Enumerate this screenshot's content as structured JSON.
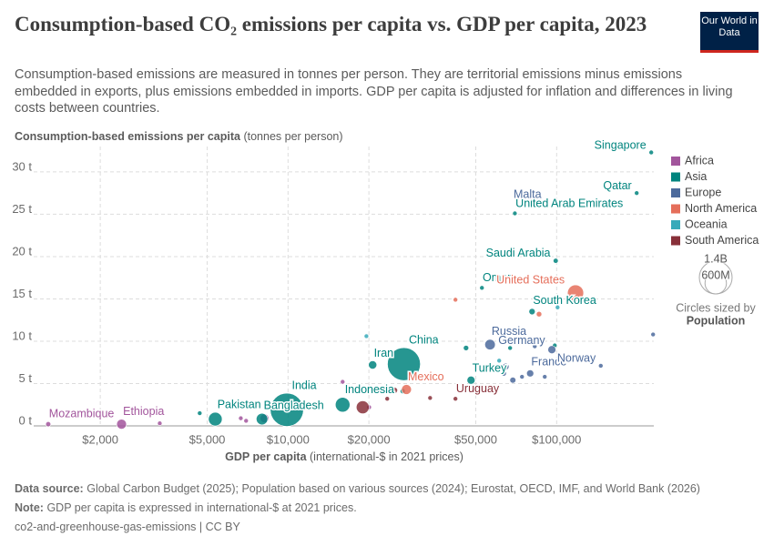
{
  "header": {
    "title": "Consumption-based CO₂ emissions per capita vs. GDP per capita, 2023",
    "subtitle": "Consumption-based emissions are measured in tonnes per person. They are territorial emissions minus emissions embedded in exports, plus emissions embedded in imports. GDP per capita is adjusted for inflation and differences in living costs between countries.",
    "logo": "Our World in Data"
  },
  "chart_data": {
    "type": "scatter",
    "x_scale": "log",
    "grid": true,
    "y_axis": {
      "title": "Consumption-based emissions per capita",
      "unit": "(tonnes per person)"
    },
    "x_axis": {
      "title": "GDP per capita",
      "unit": "(international-$ in 2021 prices)"
    },
    "xlim": [
      1130,
      230000
    ],
    "xticks": [
      {
        "value": 2000,
        "label": "$2,000"
      },
      {
        "value": 5000,
        "label": "$5,000"
      },
      {
        "value": 10000,
        "label": "$10,000"
      },
      {
        "value": 20000,
        "label": "$20,000"
      },
      {
        "value": 50000,
        "label": "$50,000"
      },
      {
        "value": 100000,
        "label": "$100,000"
      }
    ],
    "ylim": [
      0,
      33
    ],
    "yticks": [
      {
        "value": 0,
        "label": "0 t"
      },
      {
        "value": 5,
        "label": "5 t"
      },
      {
        "value": 10,
        "label": "10 t"
      },
      {
        "value": 15,
        "label": "15 t"
      },
      {
        "value": 20,
        "label": "20 t"
      },
      {
        "value": 25,
        "label": "25 t"
      },
      {
        "value": 30,
        "label": "30 t"
      }
    ],
    "legend_position": "right",
    "series": [
      {
        "name": "Africa",
        "color": "#a2559c",
        "labels": [
          "Mozambique",
          "Ethiopia",
          null,
          null,
          null,
          null,
          null,
          null
        ],
        "x": [
          1280,
          2400,
          3330,
          6670,
          8170,
          15970,
          20030,
          6980
        ],
        "values": [
          0.2,
          0.2,
          0.3,
          0.9,
          0.9,
          5.2,
          2.2,
          0.6
        ],
        "sizes": [
          33000000,
          128000000,
          15000000,
          20000000,
          100000000,
          10000000,
          30000000,
          25000000
        ]
      },
      {
        "name": "Asia",
        "color": "#00847e",
        "labels": [
          "Pakistan",
          "India",
          "Bangladesh",
          "Indonesia",
          "China",
          "Iran",
          "Oman",
          "United Arab Emirates",
          "Saudi Arabia",
          "Qatar",
          "Singapore",
          "South Korea",
          "Turkey",
          null,
          null,
          null,
          null,
          null,
          null
        ],
        "x": [
          5360,
          9900,
          8000,
          15970,
          27000,
          20650,
          52700,
          69900,
          99200,
          198600,
          225000,
          81000,
          48000,
          4690,
          12350,
          26730,
          67100,
          46000,
          98400
        ],
        "values": [
          0.8,
          1.9,
          0.8,
          2.5,
          7.3,
          7.2,
          16.3,
          25.1,
          19.5,
          27.5,
          32.3,
          13.5,
          5.4,
          1.5,
          2.5,
          4.1,
          9.2,
          9.2,
          9.5
        ],
        "sizes": [
          245000000,
          1430000000,
          172000000,
          278000000,
          1410000000,
          90000000,
          5000000,
          10000000,
          33000000,
          3000000,
          6000000,
          52000000,
          85000000,
          10000000,
          30000000,
          35000000,
          20000000,
          37000000,
          5000000
        ]
      },
      {
        "name": "Europe",
        "color": "#4c6a9c",
        "labels": [
          "Malta",
          "Russia",
          "Germany",
          "France",
          "Norway",
          null,
          null,
          null,
          null,
          null,
          null,
          null,
          null
        ],
        "x": [
          91600,
          56500,
          96000,
          79700,
          146000,
          63500,
          74300,
          90300,
          68700,
          64600,
          109800,
          228600,
          82900
        ],
        "values": [
          26.5,
          9.6,
          9.0,
          6.2,
          7.1,
          6.2,
          5.8,
          5.8,
          5.4,
          7.0,
          8.2,
          10.8,
          9.4
        ],
        "sizes": [
          500000,
          144000000,
          84000000,
          66000000,
          5500000,
          38000000,
          10000000,
          9000000,
          48000000,
          60000000,
          17000000,
          700000,
          10000000
        ]
      },
      {
        "name": "North America",
        "color": "#e56e5a",
        "labels": [
          "United States",
          "Mexico",
          null,
          null
        ],
        "x": [
          117600,
          27600,
          42000,
          86000
        ],
        "values": [
          15.7,
          4.3,
          14.9,
          13.2
        ],
        "sizes": [
          340000000,
          129000000,
          1000000,
          39000000
        ]
      },
      {
        "name": "Oceania",
        "color": "#38aaba",
        "labels": [
          null,
          null,
          null
        ],
        "x": [
          19580,
          61100,
          100800
        ],
        "values": [
          10.6,
          7.7,
          14.0
        ],
        "sizes": [
          1000000,
          5000000,
          27000000
        ]
      },
      {
        "name": "South America",
        "color": "#883039",
        "labels": [
          "Uruguay",
          null,
          null,
          null,
          null
        ],
        "x": [
          42000,
          23400,
          33800,
          24900,
          18970
        ],
        "values": [
          3.2,
          3.2,
          3.3,
          4.2,
          2.2
        ],
        "sizes": [
          3400000,
          20000000,
          20000000,
          50000000,
          216000000
        ]
      }
    ],
    "size_legend": {
      "title": "Circles sized by",
      "variable": "Population",
      "items": [
        {
          "value": 1400000000,
          "label": "1.4B"
        },
        {
          "value": 600000000,
          "label": "600M"
        }
      ]
    }
  },
  "footer": {
    "source_label": "Data source:",
    "source": "Global Carbon Budget (2025); Population based on various sources (2024); Eurostat, OECD, IMF, and World Bank (2026)",
    "note_label": "Note:",
    "note": "GDP per capita is expressed in international-$ at 2021 prices.",
    "license": "co2-and-greenhouse-gas-emissions | CC BY"
  }
}
